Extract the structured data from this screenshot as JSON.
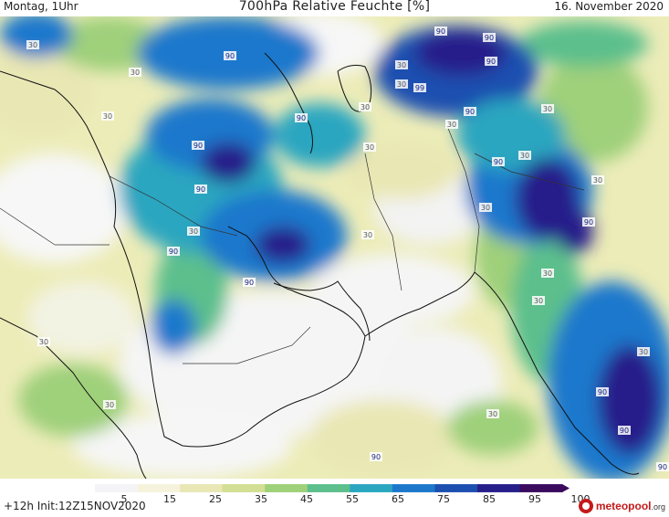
{
  "header": {
    "day_time": "Montag, 1Uhr",
    "title": "700hPa Relative Feuchte [%]",
    "date": "16. November 2020"
  },
  "footer": {
    "run_info": "+12h Init:12Z15NOV2020",
    "logo_text": "meteopool",
    "logo_domain": ".org"
  },
  "legend": {
    "ticks": [
      "5",
      "15",
      "25",
      "35",
      "45",
      "55",
      "65",
      "75",
      "85",
      "95",
      "100"
    ],
    "colors": [
      "#f4f4f6",
      "#f6f3dc",
      "#e9e7b4",
      "#d2df94",
      "#9fd07a",
      "#5cbf8c",
      "#2aa6c0",
      "#1d78cc",
      "#1c4fb0",
      "#261f8a",
      "#3a0b5e"
    ]
  },
  "contour_labels": [
    "30",
    "30",
    "30",
    "90",
    "90",
    "90",
    "90",
    "30",
    "90",
    "30",
    "99",
    "30",
    "30",
    "90",
    "30",
    "90",
    "30",
    "90",
    "90",
    "30",
    "30",
    "90",
    "30",
    "30",
    "30",
    "90",
    "30",
    "90",
    "30",
    "30",
    "30",
    "30",
    "90",
    "90",
    "30",
    "90",
    "90"
  ],
  "region": "Middle East / Arabian Peninsula / Iran / Pakistan / India"
}
